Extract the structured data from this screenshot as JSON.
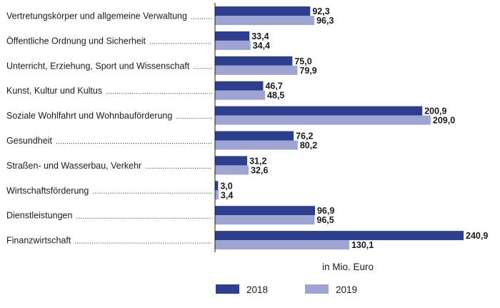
{
  "chart_data": {
    "type": "bar",
    "orientation": "horizontal",
    "categories": [
      "Vertretungskörper und allgemeine Verwaltung",
      "Öffentliche Ordnung und Sicherheit",
      "Unterricht, Erziehung, Sport und Wissenschaft",
      "Kunst, Kultur und Kultus",
      "Soziale Wohlfahrt und Wohnbauförderung",
      "Gesundheit",
      "Straßen- und Wasserbau, Verkehr",
      "Wirtschaftsförderung",
      "Dienstleistungen",
      "Finanzwirtschaft"
    ],
    "series": [
      {
        "name": "2018",
        "color": "#2d3e8f",
        "values": [
          92.3,
          33.4,
          75.0,
          46.7,
          200.9,
          76.2,
          31.2,
          3.0,
          96.9,
          240.9
        ],
        "labels": [
          "92,3",
          "33,4",
          "75,0",
          "46,7",
          "200,9",
          "76,2",
          "31,2",
          "3,0",
          "96,9",
          "240,9"
        ]
      },
      {
        "name": "2019",
        "color": "#9ea5d3",
        "values": [
          96.3,
          34.4,
          79.9,
          48.5,
          209.0,
          80.2,
          32.6,
          3.4,
          96.5,
          130.1
        ],
        "labels": [
          "96,3",
          "34,4",
          "79,9",
          "48,5",
          "209,0",
          "80,2",
          "32,6",
          "3,4",
          "96,5",
          "130,1"
        ]
      }
    ],
    "unit_label": "in Mio. Euro",
    "xlim": [
      0,
      240.9
    ],
    "grid": false,
    "legend_position": "bottom-center"
  }
}
